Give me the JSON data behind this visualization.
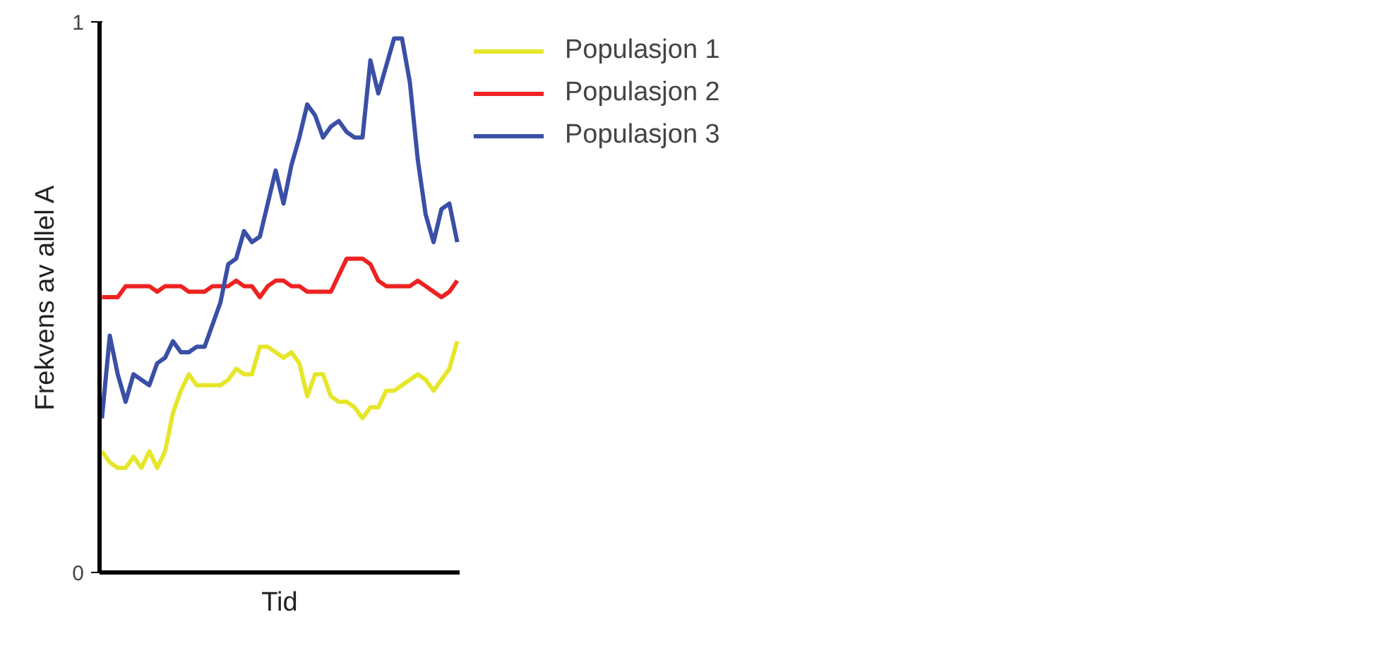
{
  "chart_data": {
    "type": "line",
    "xlabel": "Tid",
    "ylabel": "Frekvens av allel A",
    "categories": [
      null,
      null,
      null,
      null,
      null,
      null,
      null,
      null,
      null,
      null,
      null,
      null,
      null,
      null,
      null,
      null,
      null,
      null,
      null,
      null,
      null,
      null,
      null,
      null,
      null,
      null,
      null,
      null,
      null,
      null,
      null,
      null,
      null,
      null,
      null,
      null,
      null,
      null,
      null,
      null,
      null,
      null,
      null,
      null,
      null,
      null
    ],
    "series": [
      {
        "name": "Populasjon 1",
        "color": "#e6e62a",
        "values": [
          0.22,
          0.2,
          0.19,
          0.19,
          0.21,
          0.19,
          0.22,
          0.19,
          0.22,
          0.29,
          0.33,
          0.36,
          0.34,
          0.34,
          0.34,
          0.34,
          0.35,
          0.37,
          0.36,
          0.36,
          0.41,
          0.41,
          0.4,
          0.39,
          0.4,
          0.38,
          0.32,
          0.36,
          0.36,
          0.32,
          0.31,
          0.31,
          0.3,
          0.28,
          0.3,
          0.3,
          0.33,
          0.33,
          0.34,
          0.35,
          0.36,
          0.35,
          0.33,
          0.35,
          0.37,
          0.42
        ]
      },
      {
        "name": "Populasjon 2",
        "color": "#ee2222",
        "values": [
          0.5,
          0.5,
          0.5,
          0.52,
          0.52,
          0.52,
          0.52,
          0.51,
          0.52,
          0.52,
          0.52,
          0.51,
          0.51,
          0.51,
          0.52,
          0.52,
          0.52,
          0.53,
          0.52,
          0.52,
          0.5,
          0.52,
          0.53,
          0.53,
          0.52,
          0.52,
          0.51,
          0.51,
          0.51,
          0.51,
          0.54,
          0.57,
          0.57,
          0.57,
          0.56,
          0.53,
          0.52,
          0.52,
          0.52,
          0.52,
          0.53,
          0.52,
          0.51,
          0.5,
          0.51,
          0.53
        ]
      },
      {
        "name": "Populasjon 3",
        "color": "#3a4fa6",
        "values": [
          0.28,
          0.43,
          0.36,
          0.31,
          0.36,
          0.35,
          0.34,
          0.38,
          0.39,
          0.42,
          0.4,
          0.4,
          0.41,
          0.41,
          0.45,
          0.49,
          0.56,
          0.57,
          0.62,
          0.6,
          0.61,
          0.67,
          0.73,
          0.67,
          0.74,
          0.79,
          0.85,
          0.83,
          0.79,
          0.81,
          0.82,
          0.8,
          0.79,
          0.79,
          0.93,
          0.87,
          0.92,
          0.97,
          0.97,
          0.89,
          0.75,
          0.65,
          0.6,
          0.66,
          0.67,
          0.6
        ]
      }
    ],
    "ylim": [
      0,
      1
    ],
    "yticks": [
      0,
      1
    ],
    "grid": false,
    "legend": "right",
    "tick_labels": "y",
    "line_style": "solid",
    "marker": "none"
  }
}
